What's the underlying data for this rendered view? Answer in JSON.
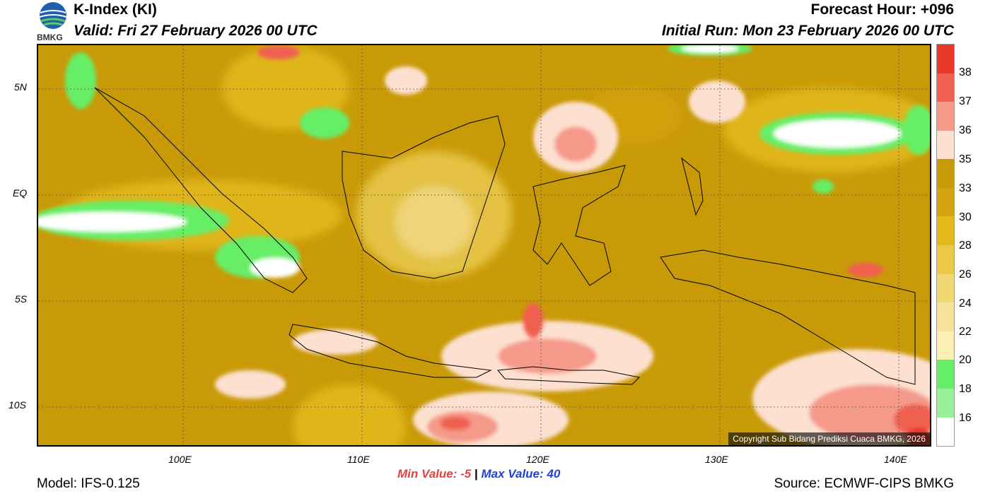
{
  "header": {
    "title": "K-Index (KI)",
    "valid": "Valid: Fri 27 February 2026 00 UTC",
    "forecast_hour": "Forecast Hour: +096",
    "initial_run": "Initial Run: Mon 23 February 2026 00 UTC",
    "logo_text": "BMKG"
  },
  "map": {
    "lat_labels": [
      "5N",
      "EQ",
      "5S",
      "10S"
    ],
    "lon_labels": [
      "100E",
      "110E",
      "120E",
      "130E",
      "140E"
    ],
    "copyright": "Copyright Sub Bidang Prediksi Cuaca BMKG, 2026"
  },
  "colorbar": {
    "labels": [
      "38",
      "37",
      "36",
      "35",
      "33",
      "30",
      "28",
      "26",
      "24",
      "22",
      "20",
      "18",
      "16"
    ],
    "colors": [
      "#e8382a",
      "#f06050",
      "#f59a8a",
      "#fde0d0",
      "#c99a08",
      "#d2a210",
      "#e2b81a",
      "#ecc848",
      "#f2d872",
      "#f6e49a",
      "#fdf0b4",
      "#66ee66",
      "#99f099",
      "#ffffff"
    ]
  },
  "footer": {
    "model": "Model: IFS-0.125",
    "min_label": "Min Value:",
    "min_value": "-5",
    "separator": "|",
    "max_label": "Max Value:",
    "max_value": "40",
    "source": "Source: ECMWF-CIPS BMKG"
  }
}
